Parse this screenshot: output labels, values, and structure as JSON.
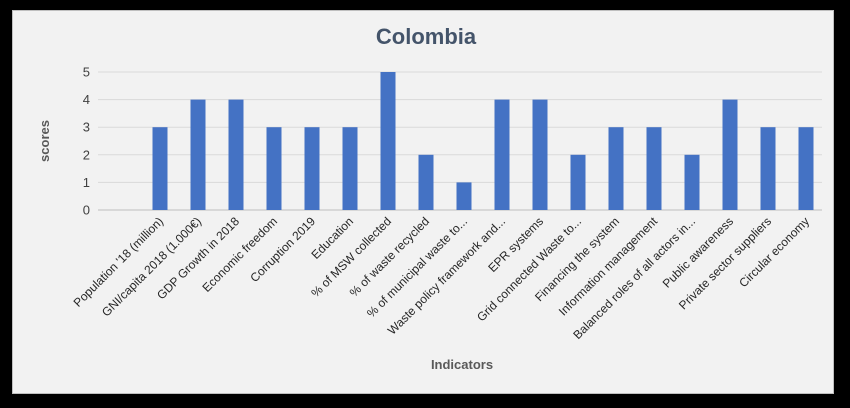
{
  "chart_data": {
    "type": "bar",
    "title": "Colombia",
    "xlabel": "Indicators",
    "ylabel": "scores",
    "ylim": [
      0,
      5
    ],
    "yticks": [
      0,
      1,
      2,
      3,
      4,
      5
    ],
    "grid": true,
    "legend": "none",
    "bar_color": "#4472c4",
    "categories": [
      "Population '18 (million)",
      "GNI/capita 2018 (1.000€)",
      "GDP Growth in 2018",
      "Economic freedom",
      "Corruption 2019",
      "Education",
      "% of MSW collected",
      "% of waste recycled",
      "% of municipal waste to...",
      "Waste policy framework and...",
      "EPR systems",
      "Grid connected Waste to...",
      "Financing the system",
      "Information management",
      "Balanced roles of all actors in...",
      "Public awareness",
      "Private sector suppliers",
      "Circular economy"
    ],
    "values": [
      3,
      4,
      4,
      3,
      3,
      3,
      5,
      2,
      1,
      4,
      4,
      2,
      3,
      3,
      2,
      4,
      3,
      3
    ]
  }
}
